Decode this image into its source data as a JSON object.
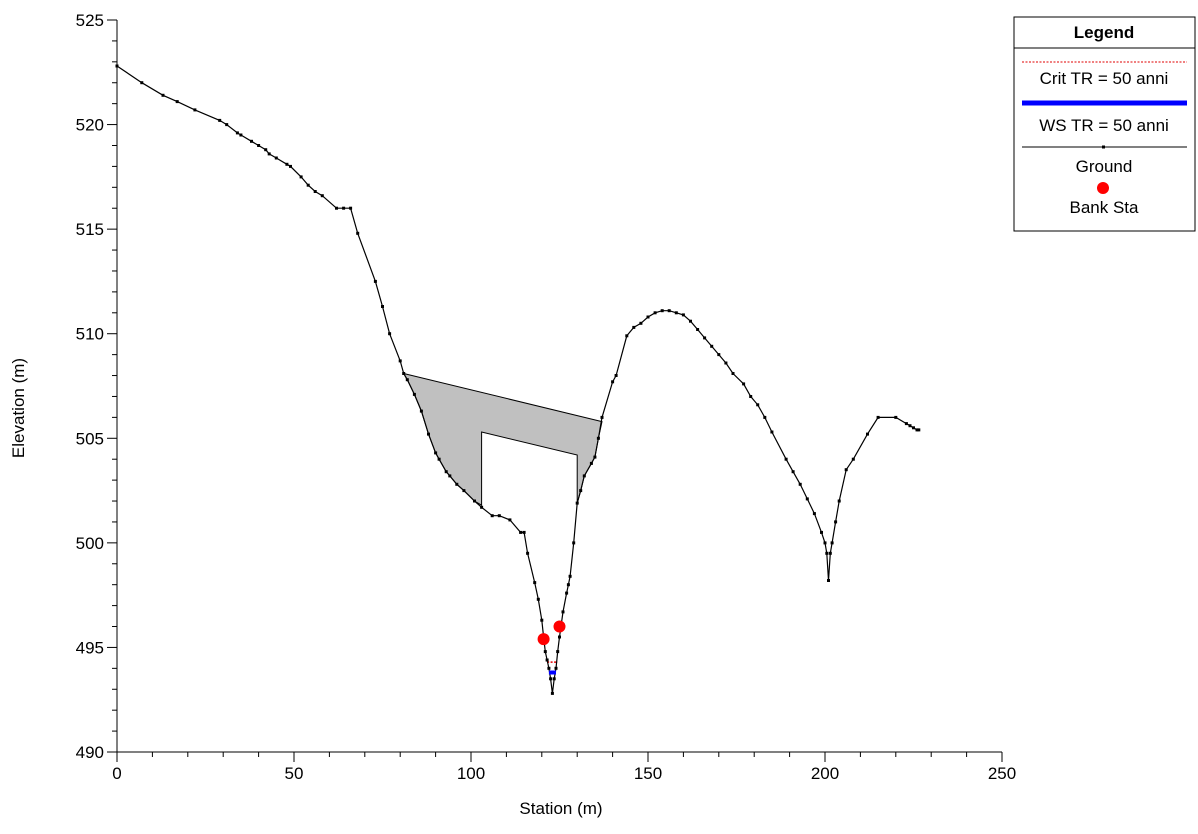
{
  "chart_data": {
    "type": "line",
    "xlabel": "Station (m)",
    "ylabel": "Elevation (m)",
    "xlim": [
      0,
      250
    ],
    "ylim": [
      490,
      525
    ],
    "x_ticks": [
      0,
      50,
      100,
      150,
      200,
      250
    ],
    "y_ticks": [
      490,
      495,
      500,
      505,
      510,
      515,
      520,
      525
    ],
    "grid": false,
    "legend": {
      "title": "Legend",
      "placement": "top-right",
      "entries": [
        {
          "name": "Crit TR = 50 anni",
          "color": "#e00000",
          "style": "dotted-line"
        },
        {
          "name": "WS TR = 50 anni",
          "color": "#0000ff",
          "style": "thick-line"
        },
        {
          "name": "Ground",
          "color": "#000000",
          "style": "line-with-markers"
        },
        {
          "name": "Bank Sta",
          "color": "#ff0000",
          "style": "circle"
        }
      ]
    },
    "series": [
      {
        "name": "Ground",
        "color": "#000000",
        "points": [
          [
            0,
            522.8
          ],
          [
            7,
            522.0
          ],
          [
            13,
            521.4
          ],
          [
            17,
            521.1
          ],
          [
            22,
            520.7
          ],
          [
            29,
            520.2
          ],
          [
            31,
            520.0
          ],
          [
            34,
            519.6
          ],
          [
            35,
            519.5
          ],
          [
            38,
            519.2
          ],
          [
            40,
            519.0
          ],
          [
            42,
            518.8
          ],
          [
            43,
            518.6
          ],
          [
            45,
            518.4
          ],
          [
            48,
            518.1
          ],
          [
            49,
            518.0
          ],
          [
            52,
            517.5
          ],
          [
            54,
            517.1
          ],
          [
            56,
            516.8
          ],
          [
            58,
            516.6
          ],
          [
            62,
            516.0
          ],
          [
            64,
            516.0
          ],
          [
            66,
            516.0
          ],
          [
            68,
            514.8
          ],
          [
            73,
            512.5
          ],
          [
            75,
            511.3
          ],
          [
            77,
            510.0
          ],
          [
            80,
            508.7
          ],
          [
            81,
            508.1
          ],
          [
            82,
            507.8
          ],
          [
            84,
            507.1
          ],
          [
            86,
            506.3
          ],
          [
            88,
            505.2
          ],
          [
            90,
            504.3
          ],
          [
            91,
            504.0
          ],
          [
            93,
            503.4
          ],
          [
            94,
            503.2
          ],
          [
            96,
            502.8
          ],
          [
            98,
            502.5
          ],
          [
            101,
            502.0
          ],
          [
            103,
            501.7
          ],
          [
            106,
            501.3
          ],
          [
            108,
            501.3
          ],
          [
            111,
            501.1
          ],
          [
            114,
            500.5
          ],
          [
            115,
            500.5
          ],
          [
            116,
            499.5
          ],
          [
            118,
            498.1
          ],
          [
            119,
            497.3
          ],
          [
            120,
            496.3
          ],
          [
            120.5,
            495.5
          ],
          [
            121,
            494.8
          ],
          [
            121.5,
            494.4
          ],
          [
            122,
            494.0
          ],
          [
            122.5,
            493.5
          ],
          [
            123,
            492.8
          ],
          [
            123.5,
            493.5
          ],
          [
            124,
            494.0
          ],
          [
            124.5,
            494.8
          ],
          [
            125,
            495.5
          ],
          [
            126,
            496.7
          ],
          [
            127,
            497.6
          ],
          [
            127.5,
            498.0
          ],
          [
            128,
            498.4
          ],
          [
            129,
            500.0
          ],
          [
            130,
            501.9
          ],
          [
            131,
            502.5
          ],
          [
            132,
            503.2
          ],
          [
            134,
            503.8
          ],
          [
            135,
            504.1
          ],
          [
            136,
            505.0
          ],
          [
            137,
            506.0
          ],
          [
            140,
            507.7
          ],
          [
            141,
            508.0
          ],
          [
            144,
            509.9
          ],
          [
            146,
            510.3
          ],
          [
            148,
            510.5
          ],
          [
            150,
            510.8
          ],
          [
            152,
            511.0
          ],
          [
            154,
            511.1
          ],
          [
            156,
            511.1
          ],
          [
            158,
            511.0
          ],
          [
            160,
            510.9
          ],
          [
            162,
            510.6
          ],
          [
            164,
            510.2
          ],
          [
            166,
            509.8
          ],
          [
            168,
            509.4
          ],
          [
            170,
            509.0
          ],
          [
            172,
            508.6
          ],
          [
            174,
            508.1
          ],
          [
            177,
            507.6
          ],
          [
            179,
            507.0
          ],
          [
            181,
            506.6
          ],
          [
            183,
            506.0
          ],
          [
            185,
            505.3
          ],
          [
            189,
            504.0
          ],
          [
            191,
            503.4
          ],
          [
            193,
            502.8
          ],
          [
            195,
            502.1
          ],
          [
            197,
            501.4
          ],
          [
            199,
            500.5
          ],
          [
            200,
            500.0
          ],
          [
            200.5,
            499.5
          ],
          [
            201,
            498.2
          ],
          [
            201.5,
            499.5
          ],
          [
            202,
            500.0
          ],
          [
            203,
            501.0
          ],
          [
            204,
            502.0
          ],
          [
            206,
            503.5
          ],
          [
            208,
            504.0
          ],
          [
            212,
            505.2
          ],
          [
            215,
            506.0
          ],
          [
            220,
            506.0
          ],
          [
            223,
            505.7
          ],
          [
            224,
            505.6
          ],
          [
            225,
            505.5
          ],
          [
            226,
            505.4
          ],
          [
            226.5,
            505.4
          ]
        ]
      },
      {
        "name": "Bank Sta",
        "color": "#ff0000",
        "points": [
          [
            120.5,
            495.4
          ],
          [
            125,
            496.0
          ]
        ]
      },
      {
        "name": "WS TR = 50 anni",
        "color": "#0000ff",
        "points": [
          [
            122,
            493.8
          ],
          [
            124,
            493.8
          ]
        ]
      },
      {
        "name": "Crit TR = 50 anni",
        "color": "#e00000",
        "points": [
          [
            121.5,
            494.3
          ],
          [
            124.5,
            494.3
          ]
        ]
      }
    ],
    "bridge_deck": {
      "fill": "#c0c0c0",
      "outer_polygon": [
        [
          81,
          508.1
        ],
        [
          137,
          505.8
        ],
        [
          136,
          505.0
        ],
        [
          135,
          504.1
        ],
        [
          134,
          503.8
        ],
        [
          132,
          503.2
        ],
        [
          131,
          502.5
        ],
        [
          130,
          501.9
        ],
        [
          130,
          504.2
        ],
        [
          103,
          505.3
        ],
        [
          103,
          501.8
        ],
        [
          101,
          502.0
        ],
        [
          98,
          502.5
        ],
        [
          96,
          502.8
        ],
        [
          94,
          503.2
        ],
        [
          93,
          503.4
        ],
        [
          91,
          504.0
        ],
        [
          90,
          504.3
        ],
        [
          88,
          505.2
        ],
        [
          86,
          506.3
        ],
        [
          84,
          507.1
        ],
        [
          82,
          507.8
        ]
      ]
    }
  }
}
